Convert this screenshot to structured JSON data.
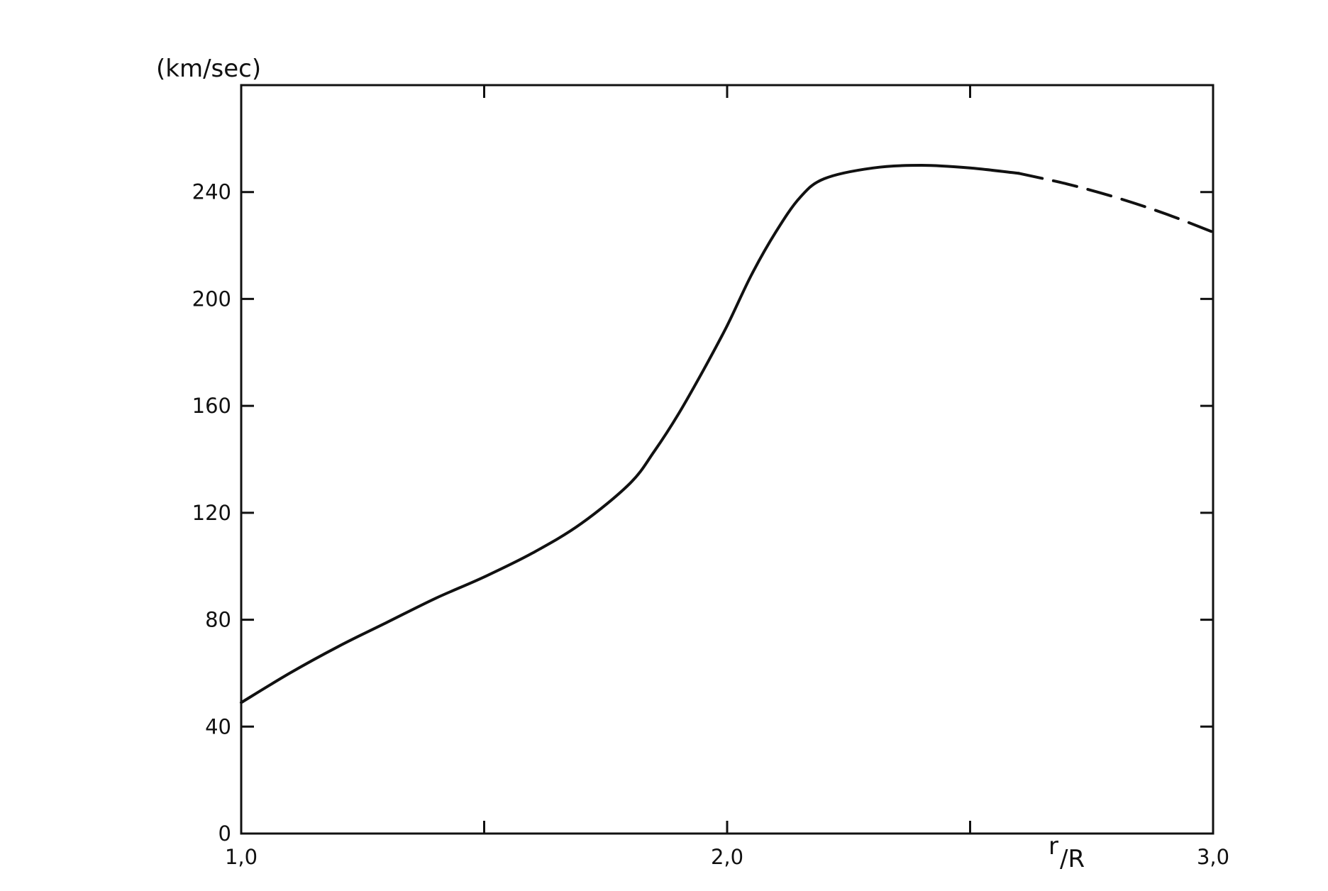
{
  "chart_data": {
    "type": "line",
    "title": "",
    "ylabel": "(km/sec)",
    "xlabel_num": "r",
    "xlabel_den": "/R",
    "xlim": [
      1.0,
      3.0
    ],
    "ylim": [
      0,
      280
    ],
    "x_tick_values": [
      1.0,
      1.5,
      2.0,
      2.5,
      3.0
    ],
    "x_tick_labels": [
      {
        "value": 1.0,
        "text": "1,0"
      },
      {
        "value": 2.0,
        "text": "2,0"
      },
      {
        "value": 3.0,
        "text": "3,0"
      }
    ],
    "y_ticks": [
      0,
      40,
      80,
      120,
      160,
      200,
      240
    ],
    "y_tick_labels": [
      "0",
      "40",
      "80",
      "120",
      "160",
      "200",
      "240"
    ],
    "grid": false,
    "line_color": "#111111",
    "series": [
      {
        "style": "solid",
        "points": [
          [
            1.0,
            49
          ],
          [
            1.1,
            60
          ],
          [
            1.2,
            70
          ],
          [
            1.3,
            79
          ],
          [
            1.4,
            88
          ],
          [
            1.5,
            96
          ],
          [
            1.6,
            105
          ],
          [
            1.7,
            116
          ],
          [
            1.8,
            131
          ],
          [
            1.85,
            143
          ],
          [
            1.9,
            157
          ],
          [
            1.95,
            173
          ],
          [
            2.0,
            190
          ],
          [
            2.05,
            209
          ],
          [
            2.1,
            225
          ],
          [
            2.15,
            238
          ],
          [
            2.2,
            245
          ],
          [
            2.3,
            249
          ],
          [
            2.4,
            250
          ],
          [
            2.5,
            249
          ],
          [
            2.6,
            247
          ]
        ]
      },
      {
        "style": "dashed",
        "points": [
          [
            2.6,
            247
          ],
          [
            2.7,
            243
          ],
          [
            2.8,
            238
          ],
          [
            2.9,
            232
          ],
          [
            3.0,
            225
          ]
        ]
      }
    ]
  }
}
